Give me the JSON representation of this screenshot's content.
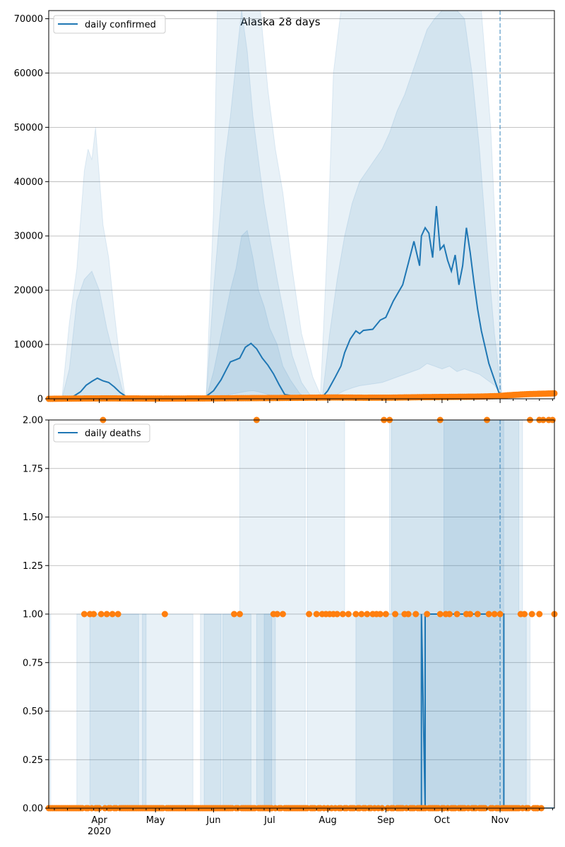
{
  "title": "Alaska 28 days",
  "colors": {
    "line": "#1f77b4",
    "band": "#1f77b4",
    "obs": "#ff7f0e",
    "grid": "#b0b0b0",
    "vline": "#1f77b4"
  },
  "x_axis": {
    "month_labels": [
      "Apr",
      "May",
      "Jun",
      "Jul",
      "Aug",
      "Sep",
      "Oct",
      "Nov"
    ],
    "year_label": "2020"
  },
  "chart_data": [
    {
      "type": "line",
      "name": "confirmed",
      "legend": "daily confirmed",
      "ylim": [
        0,
        71500
      ],
      "yticks": [
        0,
        10000,
        20000,
        30000,
        40000,
        50000,
        60000,
        70000
      ],
      "ytick_labels": [
        "0",
        "10000",
        "20000",
        "30000",
        "40000",
        "50000",
        "60000",
        "70000"
      ],
      "xlim": [
        "2020-03-05",
        "2020-11-30"
      ],
      "forecast_start": "2020-11-01",
      "grid": "horizontal",
      "legend_position": "top-left",
      "median_line": {
        "x": [
          "2020-03-05",
          "2020-03-15",
          "2020-03-18",
          "2020-03-22",
          "2020-03-25",
          "2020-03-28",
          "2020-03-31",
          "2020-04-03",
          "2020-04-06",
          "2020-04-09",
          "2020-04-12",
          "2020-04-15",
          "2020-04-20",
          "2020-05-01",
          "2020-05-20",
          "2020-05-27",
          "2020-06-01",
          "2020-06-05",
          "2020-06-08",
          "2020-06-10",
          "2020-06-13",
          "2020-06-15",
          "2020-06-18",
          "2020-06-21",
          "2020-06-24",
          "2020-06-27",
          "2020-06-30",
          "2020-07-03",
          "2020-07-06",
          "2020-07-09",
          "2020-07-12",
          "2020-07-15",
          "2020-07-25",
          "2020-07-29",
          "2020-08-01",
          "2020-08-05",
          "2020-08-08",
          "2020-08-10",
          "2020-08-13",
          "2020-08-16",
          "2020-08-18",
          "2020-08-20",
          "2020-08-25",
          "2020-08-29",
          "2020-09-01",
          "2020-09-05",
          "2020-09-10",
          "2020-09-13",
          "2020-09-16",
          "2020-09-19",
          "2020-09-20",
          "2020-09-22",
          "2020-09-24",
          "2020-09-26",
          "2020-09-28",
          "2020-09-30",
          "2020-10-02",
          "2020-10-04",
          "2020-10-06",
          "2020-10-08",
          "2020-10-10",
          "2020-10-12",
          "2020-10-14",
          "2020-10-16",
          "2020-10-18",
          "2020-10-20",
          "2020-10-22",
          "2020-10-24",
          "2020-10-26",
          "2020-10-28",
          "2020-10-30",
          "2020-11-01"
        ],
        "y": [
          0,
          0,
          400,
          1300,
          2500,
          3200,
          3800,
          3300,
          3000,
          2200,
          1200,
          500,
          100,
          50,
          80,
          150,
          1500,
          3500,
          5500,
          6800,
          7200,
          7500,
          9500,
          10200,
          9200,
          7500,
          6200,
          4600,
          2600,
          800,
          600,
          500,
          350,
          300,
          1500,
          4000,
          6000,
          8500,
          11000,
          12500,
          12000,
          12600,
          12800,
          14500,
          15000,
          18000,
          21000,
          25000,
          29000,
          24500,
          30000,
          31500,
          30500,
          26000,
          35500,
          27500,
          28300,
          25500,
          23500,
          26500,
          21000,
          24500,
          31500,
          27000,
          21500,
          16500,
          12500,
          9500,
          6500,
          4500,
          2500,
          500
        ]
      },
      "bands": [
        {
          "x": [
            "2020-03-12",
            "2020-03-16",
            "2020-03-20",
            "2020-03-24",
            "2020-03-28",
            "2020-04-01",
            "2020-04-05",
            "2020-04-09",
            "2020-04-13",
            "2020-04-15"
          ],
          "low": [
            0,
            0,
            0,
            0,
            0,
            0,
            0,
            0,
            0,
            0
          ],
          "high": [
            0,
            5500,
            18000,
            22000,
            23500,
            20000,
            13000,
            7500,
            2000,
            0
          ]
        },
        {
          "x": [
            "2020-03-12",
            "2020-03-16",
            "2020-03-20",
            "2020-03-22",
            "2020-03-24",
            "2020-03-26",
            "2020-03-28",
            "2020-03-30",
            "2020-04-01",
            "2020-04-03",
            "2020-04-06",
            "2020-04-09",
            "2020-04-12",
            "2020-04-15"
          ],
          "low": [
            0,
            0,
            0,
            0,
            0,
            0,
            0,
            0,
            0,
            0,
            0,
            0,
            0,
            0
          ],
          "high": [
            0,
            14000,
            24000,
            33000,
            42000,
            46000,
            44000,
            50000,
            41000,
            32000,
            26000,
            16000,
            7000,
            0
          ]
        },
        {
          "x": [
            "2020-05-28",
            "2020-06-01",
            "2020-06-04",
            "2020-06-07",
            "2020-06-10",
            "2020-06-13",
            "2020-06-16",
            "2020-06-19",
            "2020-06-22",
            "2020-06-25",
            "2020-06-28",
            "2020-07-01",
            "2020-07-05",
            "2020-07-08",
            "2020-07-12",
            "2020-07-17",
            "2020-07-21"
          ],
          "low": [
            0,
            100,
            300,
            500,
            800,
            1000,
            1200,
            1400,
            1500,
            1300,
            1000,
            700,
            400,
            200,
            100,
            0,
            0
          ],
          "high": [
            0,
            5000,
            10000,
            15000,
            20000,
            24000,
            30000,
            31000,
            26000,
            20000,
            17000,
            13000,
            10000,
            6000,
            3500,
            1000,
            0
          ]
        },
        {
          "x": [
            "2020-05-28",
            "2020-06-01",
            "2020-06-04",
            "2020-06-07",
            "2020-06-10",
            "2020-06-13",
            "2020-06-16",
            "2020-06-19",
            "2020-06-22",
            "2020-06-25",
            "2020-06-28",
            "2020-07-01",
            "2020-07-05",
            "2020-07-09",
            "2020-07-13",
            "2020-07-18",
            "2020-07-24"
          ],
          "low": [
            0,
            0,
            0,
            0,
            0,
            0,
            0,
            0,
            0,
            0,
            0,
            0,
            0,
            0,
            0,
            0,
            0
          ],
          "high": [
            0,
            20000,
            32000,
            44000,
            52000,
            62000,
            71500,
            64000,
            52000,
            44000,
            36000,
            30000,
            22000,
            15000,
            8000,
            3000,
            0
          ]
        },
        {
          "x": [
            "2020-05-28",
            "2020-06-01",
            "2020-06-03",
            "2020-06-08",
            "2020-06-16",
            "2020-06-22",
            "2020-06-26",
            "2020-06-30",
            "2020-07-04",
            "2020-07-08",
            "2020-07-13",
            "2020-07-18",
            "2020-07-24",
            "2020-07-29"
          ],
          "low": [
            0,
            0,
            0,
            0,
            0,
            0,
            0,
            0,
            0,
            0,
            0,
            0,
            0,
            0
          ],
          "high": [
            0,
            35000,
            71500,
            71500,
            71500,
            71500,
            71500,
            57000,
            46000,
            38000,
            24000,
            12000,
            4000,
            0
          ]
        },
        {
          "x": [
            "2020-07-29",
            "2020-08-02",
            "2020-08-06",
            "2020-08-10",
            "2020-08-14",
            "2020-08-18",
            "2020-08-22",
            "2020-08-26",
            "2020-08-30",
            "2020-09-03",
            "2020-09-07",
            "2020-09-11",
            "2020-09-15",
            "2020-09-19",
            "2020-09-23",
            "2020-09-27",
            "2020-10-01",
            "2020-10-05",
            "2020-10-09",
            "2020-10-13",
            "2020-10-17",
            "2020-10-21",
            "2020-10-25",
            "2020-10-29",
            "2020-11-01",
            "2020-11-02"
          ],
          "low": [
            0,
            300,
            800,
            1500,
            2000,
            2400,
            2600,
            2800,
            3000,
            3500,
            4000,
            4500,
            5000,
            5500,
            6500,
            6000,
            5500,
            6000,
            5000,
            5500,
            5000,
            4500,
            3500,
            2500,
            1000,
            0
          ],
          "high": [
            0,
            12000,
            22000,
            30000,
            36000,
            40000,
            42000,
            44000,
            46000,
            49000,
            53000,
            56000,
            60000,
            64000,
            68000,
            70000,
            71500,
            71500,
            71500,
            70000,
            60000,
            46000,
            28000,
            12000,
            3000,
            0
          ]
        },
        {
          "x": [
            "2020-07-28",
            "2020-08-01",
            "2020-08-04",
            "2020-08-08",
            "2020-08-20",
            "2020-09-15",
            "2020-10-10",
            "2020-10-22",
            "2020-10-27",
            "2020-10-31",
            "2020-11-02"
          ],
          "low": [
            0,
            0,
            0,
            0,
            0,
            0,
            0,
            0,
            0,
            0,
            0
          ],
          "high": [
            0,
            30000,
            60000,
            71500,
            71500,
            71500,
            71500,
            71500,
            50000,
            20000,
            0
          ]
        }
      ],
      "observed": {
        "x": [
          "2020-03-05",
          "2020-03-20",
          "2020-04-05",
          "2020-04-20",
          "2020-05-05",
          "2020-05-20",
          "2020-06-05",
          "2020-06-20",
          "2020-07-05",
          "2020-07-20",
          "2020-08-05",
          "2020-08-20",
          "2020-09-05",
          "2020-09-20",
          "2020-10-05",
          "2020-10-20",
          "2020-10-31",
          "2020-11-05",
          "2020-11-10",
          "2020-11-15",
          "2020-11-20",
          "2020-11-25",
          "2020-11-30"
        ],
        "y": [
          0,
          50,
          80,
          60,
          40,
          60,
          90,
          120,
          150,
          200,
          250,
          200,
          220,
          300,
          350,
          400,
          500,
          650,
          750,
          850,
          900,
          950,
          1000
        ]
      }
    },
    {
      "type": "line",
      "name": "deaths",
      "legend": "daily deaths",
      "ylim": [
        0,
        2.0
      ],
      "yticks": [
        0,
        0.25,
        0.5,
        0.75,
        1.0,
        1.25,
        1.5,
        1.75,
        2.0
      ],
      "ytick_labels": [
        "0.00",
        "0.25",
        "0.50",
        "0.75",
        "1.00",
        "1.25",
        "1.50",
        "1.75",
        "2.00"
      ],
      "xlim": [
        "2020-03-05",
        "2020-11-30"
      ],
      "forecast_start": "2020-11-01",
      "grid": "horizontal",
      "legend_position": "top-left",
      "median_line": {
        "x": [
          "2020-03-05",
          "2020-09-20",
          "2020-09-20",
          "2020-09-22",
          "2020-09-22",
          "2020-11-03",
          "2020-11-03",
          "2020-11-30"
        ],
        "y": [
          0,
          0,
          1,
          0,
          1,
          1,
          0,
          0
        ]
      },
      "bands": [
        {
          "x": [
            "2020-03-05",
            "2020-03-05",
            "2020-03-06",
            "2020-03-06"
          ],
          "low": [
            0,
            0,
            0,
            0
          ],
          "high": [
            0,
            1,
            1,
            0
          ]
        },
        {
          "x": [
            "2020-03-27",
            "2020-03-27",
            "2020-04-22",
            "2020-04-22",
            "2020-04-24",
            "2020-04-24",
            "2020-05-21",
            "2020-05-21",
            "2020-05-25",
            "2020-05-25",
            "2020-06-05",
            "2020-06-05"
          ],
          "low": [
            0,
            0,
            0,
            0,
            0,
            0,
            0,
            0,
            0,
            0,
            0,
            0
          ],
          "high": [
            0,
            1,
            1,
            0,
            0,
            1,
            1,
            0,
            0,
            1,
            1,
            0
          ]
        },
        {
          "x": [
            "2020-03-20",
            "2020-03-20",
            "2020-04-26",
            "2020-04-26",
            "2020-05-27",
            "2020-05-27",
            "2020-06-15",
            "2020-06-15",
            "2020-07-20",
            "2020-07-20",
            "2020-07-21",
            "2020-07-21",
            "2020-08-10",
            "2020-08-10",
            "2020-09-03",
            "2020-09-03",
            "2020-11-13",
            "2020-11-13",
            "2020-11-17",
            "2020-11-17"
          ],
          "low": [
            0,
            0,
            0,
            0,
            0,
            0,
            0,
            0,
            0,
            0,
            0,
            0,
            0,
            0,
            0,
            0,
            0,
            0,
            0,
            0
          ],
          "high": [
            0,
            1,
            1,
            0,
            0,
            1,
            1,
            2,
            2,
            0,
            0,
            2,
            2,
            1,
            1,
            2,
            2,
            1,
            1,
            0
          ]
        },
        {
          "x": [
            "2020-06-06",
            "2020-06-06",
            "2020-06-21",
            "2020-06-21",
            "2020-06-28",
            "2020-06-28",
            "2020-07-04",
            "2020-07-04",
            "2020-08-16",
            "2020-08-16",
            "2020-09-04",
            "2020-09-04",
            "2020-09-30",
            "2020-09-30",
            "2020-11-11",
            "2020-11-11",
            "2020-11-15",
            "2020-11-15"
          ],
          "low": [
            0,
            0,
            0,
            0,
            0,
            0,
            0,
            0,
            0,
            0,
            0,
            0,
            0,
            0,
            0,
            0,
            0,
            0
          ],
          "high": [
            0,
            1,
            1,
            0,
            0,
            1,
            1,
            0,
            0,
            1,
            1,
            2,
            2,
            2,
            2,
            1,
            1,
            0
          ]
        },
        {
          "x": [
            "2020-06-24",
            "2020-06-24",
            "2020-07-02",
            "2020-07-02",
            "2020-09-05",
            "2020-09-05",
            "2020-10-02",
            "2020-10-02",
            "2020-11-03",
            "2020-11-03"
          ],
          "low": [
            0,
            0,
            0,
            0,
            0,
            0,
            0,
            0,
            0,
            0
          ],
          "high": [
            0,
            1,
            1,
            0,
            0,
            1,
            1,
            2,
            2,
            0
          ]
        }
      ],
      "observed": {
        "x_zero_start": "2020-03-05",
        "x_zero_end": "2020-11-23",
        "ones": [
          "2020-03-24",
          "2020-03-27",
          "2020-03-29",
          "2020-04-02",
          "2020-04-05",
          "2020-04-08",
          "2020-04-11",
          "2020-05-06",
          "2020-06-12",
          "2020-06-15",
          "2020-07-03",
          "2020-07-05",
          "2020-07-08",
          "2020-07-22",
          "2020-07-26",
          "2020-07-29",
          "2020-07-31",
          "2020-08-02",
          "2020-08-04",
          "2020-08-06",
          "2020-08-09",
          "2020-08-12",
          "2020-08-16",
          "2020-08-19",
          "2020-08-22",
          "2020-08-25",
          "2020-08-27",
          "2020-08-29",
          "2020-09-01",
          "2020-09-06",
          "2020-09-11",
          "2020-09-13",
          "2020-09-17",
          "2020-09-23",
          "2020-09-30",
          "2020-10-03",
          "2020-10-05",
          "2020-10-09",
          "2020-10-14",
          "2020-10-16",
          "2020-10-20",
          "2020-10-26",
          "2020-10-29",
          "2020-11-01",
          "2020-11-12",
          "2020-11-14",
          "2020-11-18",
          "2020-11-22",
          "2020-11-30"
        ],
        "twos": [
          "2020-04-03",
          "2020-06-24",
          "2020-08-31",
          "2020-09-03",
          "2020-09-30",
          "2020-10-25",
          "2020-11-17",
          "2020-11-22",
          "2020-11-24",
          "2020-11-27",
          "2020-11-29"
        ]
      }
    }
  ]
}
